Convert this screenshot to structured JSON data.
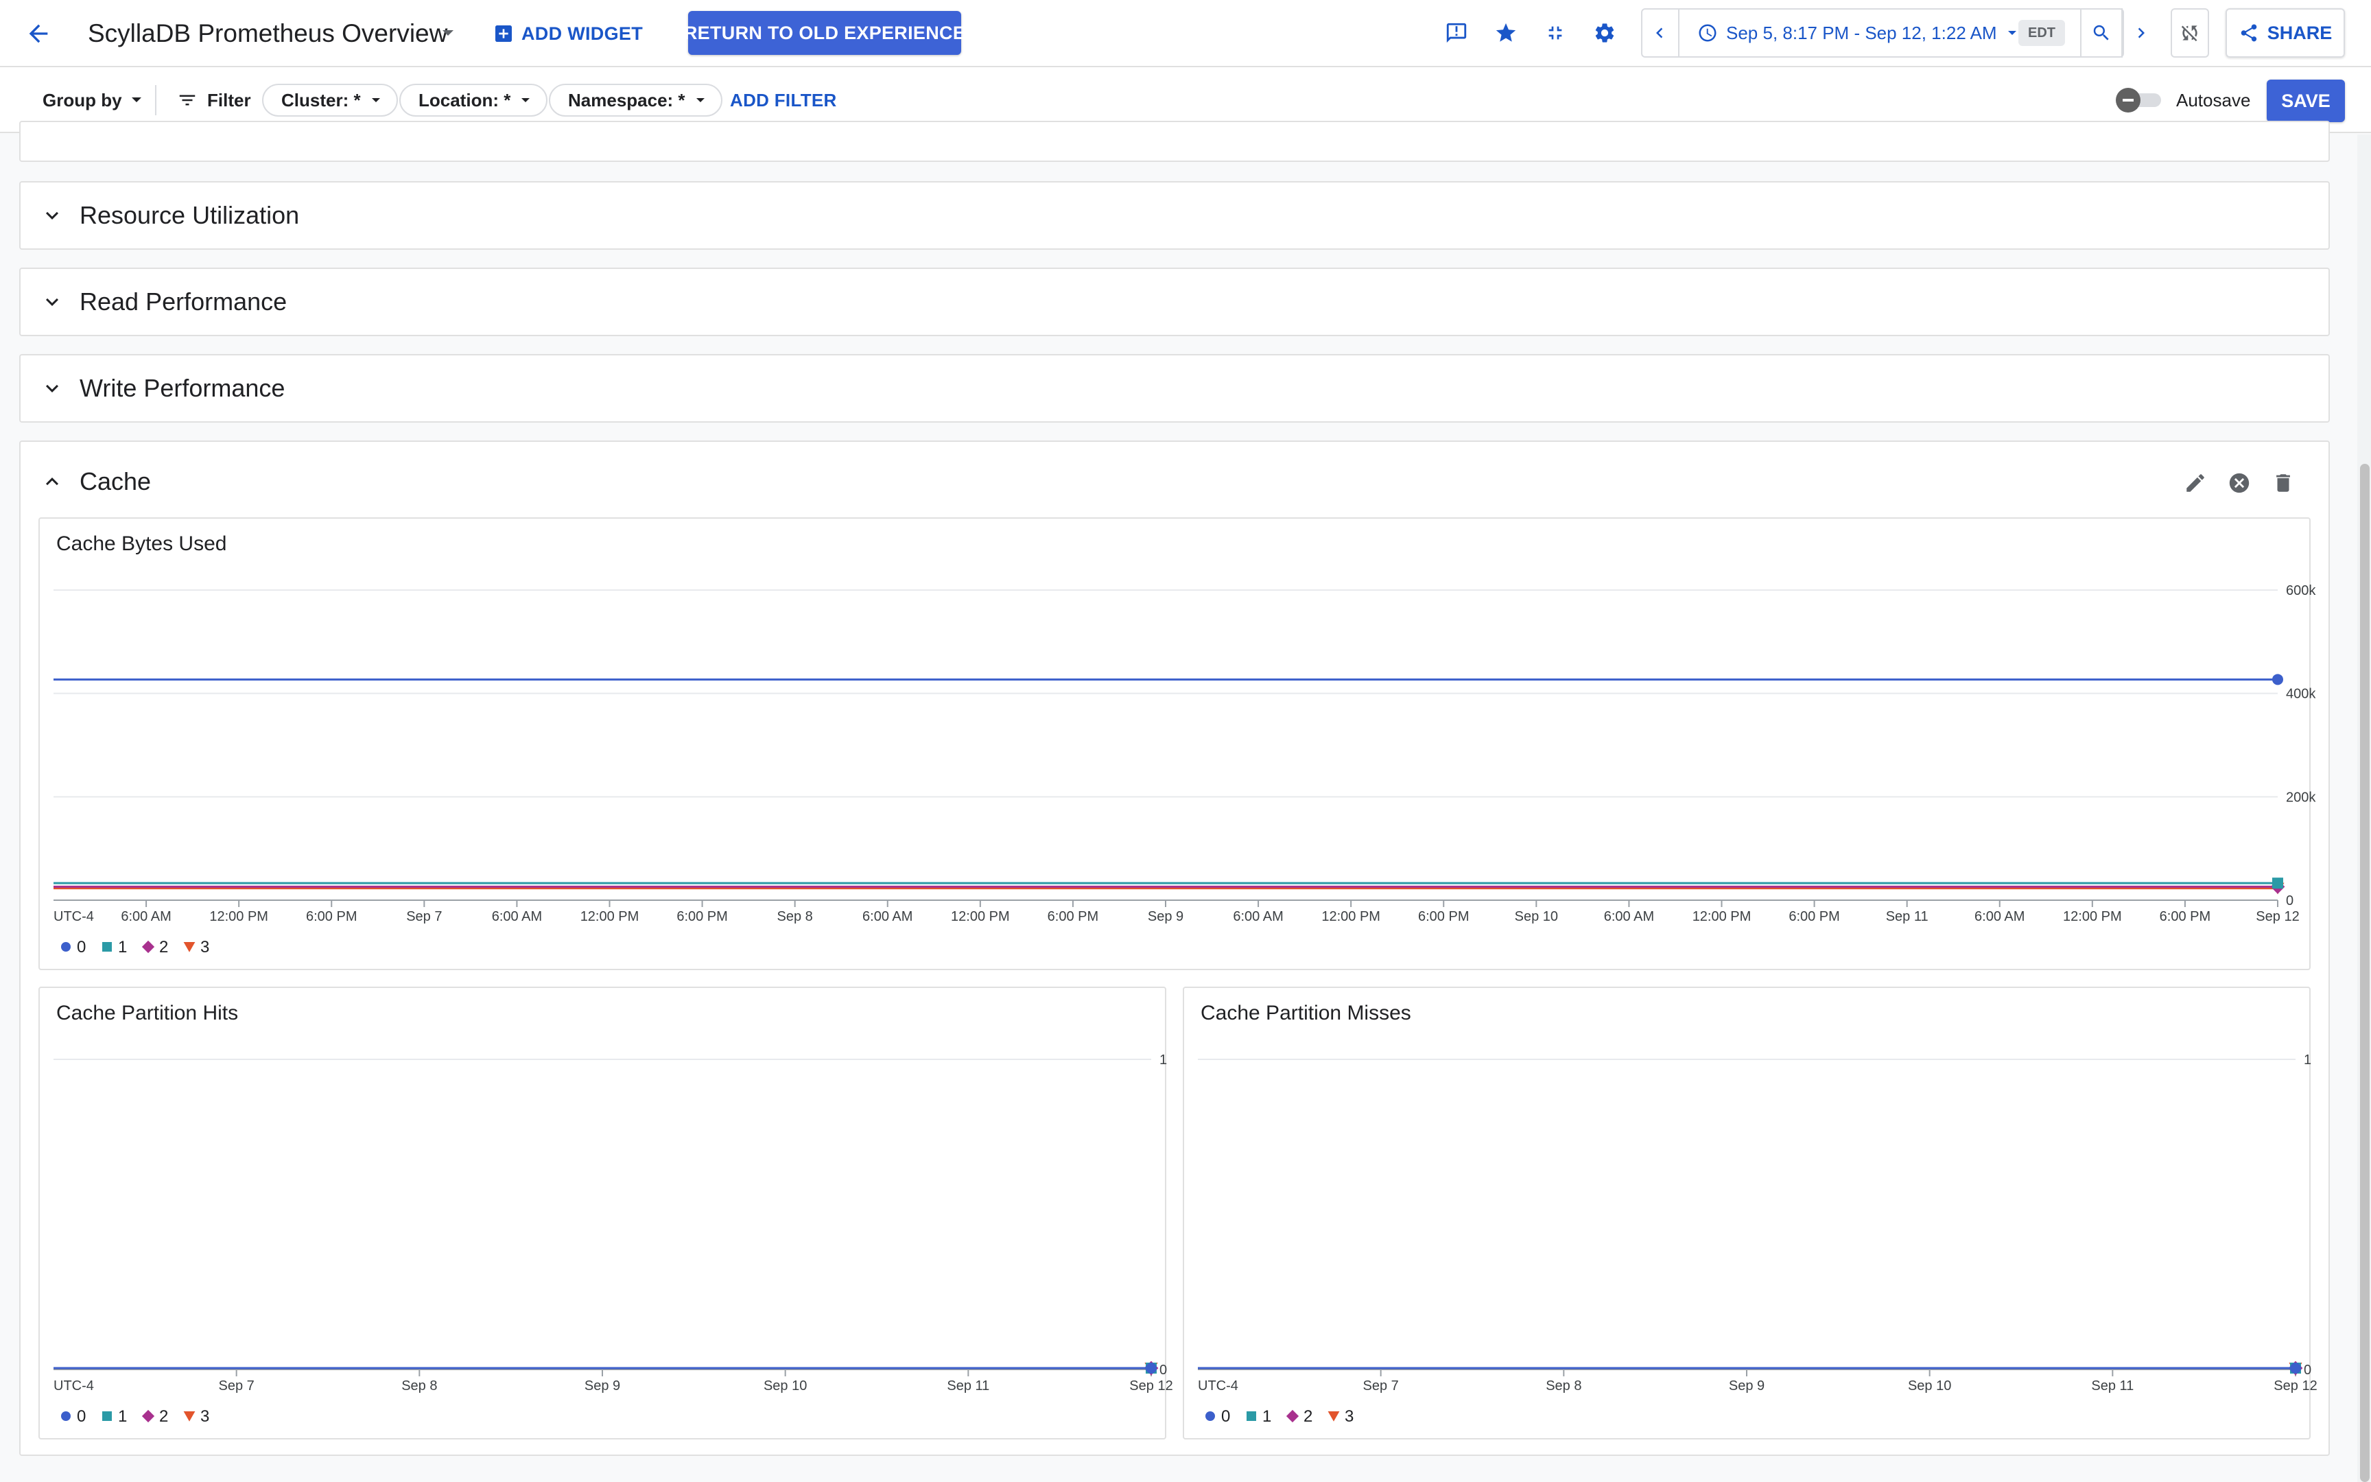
{
  "header": {
    "title": "ScyllaDB Prometheus Overview",
    "add_widget_label": "ADD WIDGET",
    "return_old_label": "RETURN TO OLD EXPERIENCE",
    "time_range": "Sep 5, 8:17 PM - Sep 12, 1:22 AM",
    "timezone": "EDT",
    "share_label": "SHARE",
    "icons": [
      "arrow-back-icon",
      "feedback-icon",
      "star-icon",
      "fullscreen-exit-icon",
      "gear-icon",
      "chevron-left-icon",
      "clock-icon",
      "search-icon",
      "chevron-right-icon",
      "sync-disabled-icon",
      "share-icon"
    ]
  },
  "filters": {
    "group_by_label": "Group by",
    "filter_label": "Filter",
    "chips": [
      {
        "id": "cluster",
        "label": "Cluster: *"
      },
      {
        "id": "location",
        "label": "Location: *"
      },
      {
        "id": "namespace",
        "label": "Namespace: *"
      }
    ],
    "add_filter_label": "ADD FILTER",
    "autosave_label": "Autosave",
    "autosave_on": false,
    "save_label": "SAVE"
  },
  "sections": {
    "resource": {
      "title": "Resource Utilization",
      "expanded": false
    },
    "read": {
      "title": "Read Performance",
      "expanded": false
    },
    "write": {
      "title": "Write Performance",
      "expanded": false
    },
    "cache": {
      "title": "Cache",
      "expanded": true
    }
  },
  "legend": [
    {
      "label": "0",
      "color": "#3c5fcb",
      "shape": "circle"
    },
    {
      "label": "1",
      "color": "#2b9aa6",
      "shape": "square"
    },
    {
      "label": "2",
      "color": "#a8318e",
      "shape": "diamond"
    },
    {
      "label": "3",
      "color": "#e2542c",
      "shape": "triangle"
    }
  ],
  "chart_data": [
    {
      "id": "bytes",
      "type": "line",
      "title": "Cache Bytes Used",
      "y_ticks": [
        {
          "value": 0,
          "label": "0"
        },
        {
          "value": 200000,
          "label": "200k"
        },
        {
          "value": 400000,
          "label": "400k"
        },
        {
          "value": 600000,
          "label": "600k"
        }
      ],
      "ylim": [
        0,
        600000
      ],
      "xlim": [
        "Sep 5, 8:17 PM",
        "Sep 12, 1:22 AM"
      ],
      "x_tick_labels": [
        "UTC-4",
        "6:00 AM",
        "12:00 PM",
        "6:00 PM",
        "Sep 7",
        "6:00 AM",
        "12:00 PM",
        "6:00 PM",
        "Sep 8",
        "6:00 AM",
        "12:00 PM",
        "6:00 PM",
        "Sep 9",
        "6:00 AM",
        "12:00 PM",
        "6:00 PM",
        "Sep 10",
        "6:00 AM",
        "12:00 PM",
        "6:00 PM",
        "Sep 11",
        "6:00 AM",
        "12:00 PM",
        "6:00 PM",
        "Sep 12"
      ],
      "series": [
        {
          "name": "0",
          "value": 427000
        },
        {
          "name": "1",
          "value": 33000
        },
        {
          "name": "2",
          "value": 26000
        },
        {
          "name": "3",
          "value": 23000
        }
      ],
      "grid": true,
      "legend_position": "bottom-left"
    },
    {
      "id": "hits",
      "type": "line",
      "title": "Cache Partition Hits",
      "y_ticks": [
        {
          "value": 0,
          "label": "0"
        },
        {
          "value": 1,
          "label": "1"
        }
      ],
      "ylim": [
        0,
        1
      ],
      "x_tick_labels": [
        "UTC-4",
        "Sep 7",
        "Sep 8",
        "Sep 9",
        "Sep 10",
        "Sep 11",
        "Sep 12"
      ],
      "series": [
        {
          "name": "0",
          "value": 0
        },
        {
          "name": "1",
          "value": 0
        },
        {
          "name": "2",
          "value": 0
        },
        {
          "name": "3",
          "value": 0
        }
      ],
      "grid": true,
      "legend_position": "bottom-left"
    },
    {
      "id": "misses",
      "type": "line",
      "title": "Cache Partition Misses",
      "y_ticks": [
        {
          "value": 0,
          "label": "0"
        },
        {
          "value": 1,
          "label": "1"
        }
      ],
      "ylim": [
        0,
        1
      ],
      "x_tick_labels": [
        "UTC-4",
        "Sep 7",
        "Sep 8",
        "Sep 9",
        "Sep 10",
        "Sep 11",
        "Sep 12"
      ],
      "series": [
        {
          "name": "0",
          "value": 0
        },
        {
          "name": "1",
          "value": 0
        },
        {
          "name": "2",
          "value": 0
        },
        {
          "name": "3",
          "value": 0
        }
      ],
      "grid": true,
      "legend_position": "bottom-left"
    }
  ]
}
